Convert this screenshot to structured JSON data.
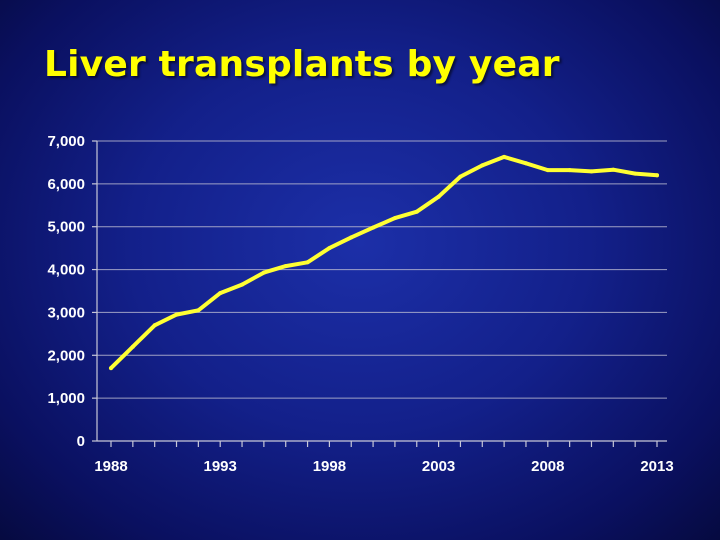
{
  "slide": {
    "title": "Liver transplants by year"
  },
  "colors": {
    "background": "#13208a",
    "title": "#ffff00",
    "line": "#ffff33",
    "axis": "#c8c8d8",
    "grid": "#b8b8d0",
    "tick_text": "#ffffff"
  },
  "chart_data": {
    "type": "line",
    "title": "",
    "xlabel": "",
    "ylabel": "",
    "grid": true,
    "legend": "none",
    "xlim": [
      1988,
      2013
    ],
    "ylim": [
      0,
      7000
    ],
    "y_ticks": [
      0,
      1000,
      2000,
      3000,
      4000,
      5000,
      6000,
      7000
    ],
    "y_tick_labels": [
      "0",
      "1,000",
      "2,000",
      "3,000",
      "4,000",
      "5,000",
      "6,000",
      "7,000"
    ],
    "x_ticks": [
      1988,
      1993,
      1998,
      2003,
      2008,
      2013
    ],
    "x_tick_labels": [
      "1988",
      "1993",
      "1998",
      "2003",
      "2008",
      "2013"
    ],
    "series": [
      {
        "x": [
          1988,
          1989,
          1990,
          1991,
          1992,
          1993,
          1994,
          1995,
          1996,
          1997,
          1998,
          1999,
          2000,
          2001,
          2002,
          2003,
          2004,
          2005,
          2006,
          2007,
          2008,
          2009,
          2010,
          2011,
          2012,
          2013
        ],
        "values": [
          1700,
          2200,
          2700,
          2950,
          3050,
          3450,
          3650,
          3930,
          4080,
          4170,
          4500,
          4750,
          4980,
          5200,
          5350,
          5700,
          6170,
          6430,
          6630,
          6480,
          6320,
          6320,
          6290,
          6330,
          6240,
          6200
        ]
      }
    ]
  }
}
